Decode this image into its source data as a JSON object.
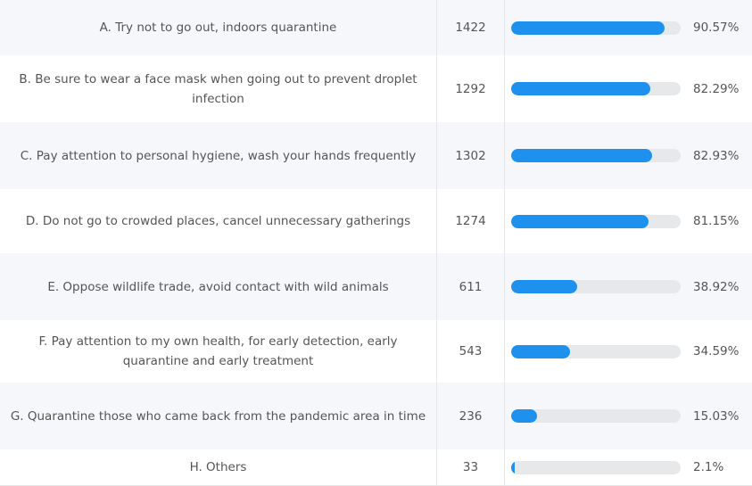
{
  "chart_data": {
    "type": "table",
    "columns": [
      "option",
      "count",
      "bar",
      "percent"
    ],
    "rows": [
      {
        "label": "A. Try not to go out, indoors quarantine",
        "count": "1422",
        "value": 90.57,
        "percent": "90.57%"
      },
      {
        "label": "B. Be sure to wear a face mask when going out to prevent droplet infection",
        "count": "1292",
        "value": 82.29,
        "percent": "82.29%"
      },
      {
        "label": "C. Pay attention to personal hygiene, wash your hands frequently",
        "count": "1302",
        "value": 82.93,
        "percent": "82.93%"
      },
      {
        "label": "D. Do not go to crowded places, cancel unnecessary gatherings",
        "count": "1274",
        "value": 81.15,
        "percent": "81.15%"
      },
      {
        "label": "E. Oppose wildlife trade, avoid contact with wild animals",
        "count": "611",
        "value": 38.92,
        "percent": "38.92%"
      },
      {
        "label": "F. Pay attention to my own health, for early detection, early quarantine and early treatment",
        "count": "543",
        "value": 34.59,
        "percent": "34.59%"
      },
      {
        "label": "G. Quarantine those who came back from the pandemic area in time",
        "count": "236",
        "value": 15.03,
        "percent": "15.03%"
      },
      {
        "label": "H. Others",
        "count": "33",
        "value": 2.1,
        "percent": "2.1%"
      }
    ],
    "xlim": [
      0,
      100
    ],
    "bar_color": "#1e90ee",
    "track_color": "#e7e8ea"
  }
}
